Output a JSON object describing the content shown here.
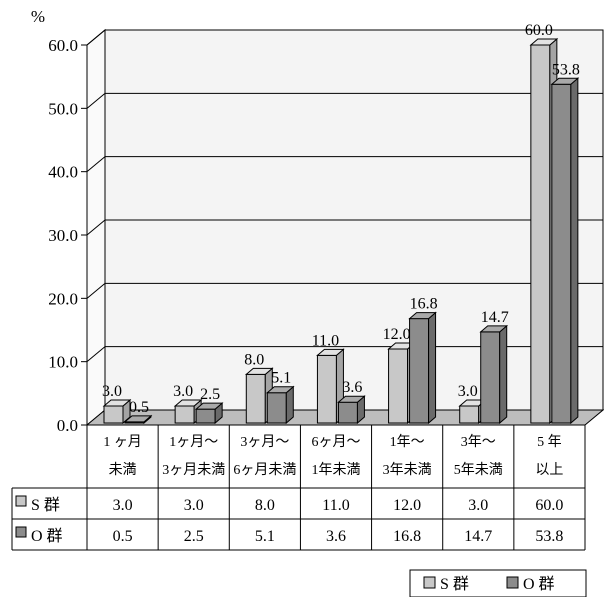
{
  "chart_data": {
    "type": "bar",
    "y_unit": "%",
    "categories": [
      [
        "1 ヶ月",
        "未満"
      ],
      [
        "1ヶ月～",
        "3ヶ月未満"
      ],
      [
        "3ヶ月～",
        "6ヶ月未満"
      ],
      [
        "6ヶ月～",
        "1年未満"
      ],
      [
        "1年～",
        "3年未満"
      ],
      [
        "3年～",
        "5年未満"
      ],
      [
        "5 年",
        "以上"
      ]
    ],
    "series": [
      {
        "name": "S 群",
        "values": [
          3.0,
          3.0,
          8.0,
          11.0,
          12.0,
          3.0,
          60.0
        ],
        "labels": [
          "3.0",
          "3.0",
          "8.0",
          "11.0",
          "12.0",
          "3.0",
          "60.0"
        ],
        "color": "#c8c8c8"
      },
      {
        "name": "O 群",
        "values": [
          0.5,
          2.5,
          5.1,
          3.6,
          16.8,
          14.7,
          53.8
        ],
        "labels": [
          "0.5",
          "2.5",
          "5.1",
          "3.6",
          "16.8",
          "14.7",
          "53.8"
        ],
        "color": "#8c8c8c"
      }
    ],
    "ylim": [
      0,
      60
    ],
    "yticks": [
      "0.0",
      "10.0",
      "20.0",
      "30.0",
      "40.0",
      "50.0",
      "60.0"
    ],
    "grid": true,
    "legend": "bottom-right",
    "data_table": true
  }
}
